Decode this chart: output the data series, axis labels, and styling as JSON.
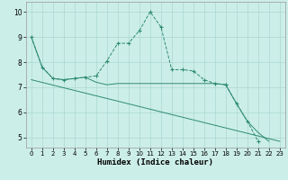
{
  "xlabel": "Humidex (Indice chaleur)",
  "background_color": "#cceee8",
  "grid_color": "#aad8d0",
  "line_color": "#2e8b72",
  "xlim": [
    -0.5,
    23.5
  ],
  "ylim": [
    4.6,
    10.4
  ],
  "xticks": [
    0,
    1,
    2,
    3,
    4,
    5,
    6,
    7,
    8,
    9,
    10,
    11,
    12,
    13,
    14,
    15,
    16,
    17,
    18,
    19,
    20,
    21,
    22,
    23
  ],
  "yticks": [
    5,
    6,
    7,
    8,
    9,
    10
  ],
  "curve1_x": [
    0,
    1,
    2,
    3,
    4,
    5,
    6,
    7,
    8,
    9,
    10,
    11,
    12,
    13,
    14,
    15,
    16,
    17,
    18
  ],
  "curve1_y": [
    9.0,
    7.8,
    7.35,
    7.3,
    7.35,
    7.4,
    7.45,
    8.05,
    8.75,
    8.75,
    9.25,
    10.0,
    9.4,
    7.7,
    7.7,
    7.65,
    7.3,
    7.15,
    7.1
  ],
  "curve2_x": [
    0,
    1,
    2,
    3,
    4,
    5,
    6,
    7,
    8,
    9,
    10,
    11,
    12,
    13,
    14,
    15,
    16,
    17,
    18,
    19,
    20,
    21,
    22
  ],
  "curve2_y": [
    9.0,
    7.8,
    7.35,
    7.3,
    7.35,
    7.4,
    7.2,
    7.1,
    7.15,
    7.15,
    7.15,
    7.15,
    7.15,
    7.15,
    7.15,
    7.15,
    7.15,
    7.15,
    7.1,
    6.35,
    5.65,
    5.2,
    4.85
  ],
  "curve3_x": [
    0,
    23
  ],
  "curve3_y": [
    7.3,
    4.85
  ],
  "curve4_x": [
    18,
    19,
    20,
    21
  ],
  "curve4_y": [
    7.1,
    6.35,
    5.65,
    4.85
  ]
}
